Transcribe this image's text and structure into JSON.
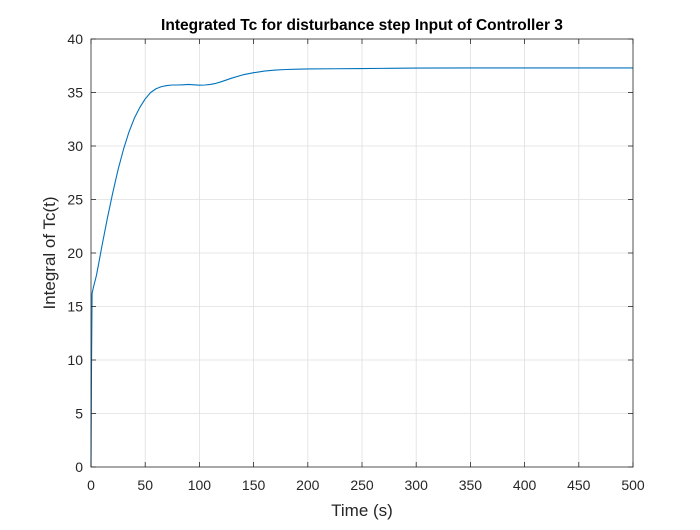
{
  "chart_data": {
    "type": "line",
    "title": "Integrated Tc for disturbance step Input of Controller 3",
    "xlabel": "Time (s)",
    "ylabel": "Integral of Tc(t)",
    "xlim": [
      0,
      500
    ],
    "ylim": [
      0,
      40
    ],
    "xticks": [
      0,
      50,
      100,
      150,
      200,
      250,
      300,
      350,
      400,
      450,
      500
    ],
    "yticks": [
      0,
      5,
      10,
      15,
      20,
      25,
      30,
      35,
      40
    ],
    "grid": true,
    "box": true,
    "line_color": "#0072BD",
    "series": [
      {
        "x": [
          0,
          0.5,
          1,
          2,
          3,
          5,
          8,
          10,
          15,
          20,
          25,
          30,
          35,
          40,
          45,
          50,
          55,
          60,
          65,
          70,
          75,
          80,
          85,
          90,
          95,
          100,
          105,
          110,
          115,
          120,
          130,
          140,
          150,
          160,
          170,
          180,
          190,
          200,
          225,
          250,
          275,
          300,
          350,
          400,
          450,
          500
        ],
        "y": [
          0,
          10,
          16.2,
          16.7,
          17.1,
          17.9,
          19.5,
          20.6,
          23.2,
          25.6,
          27.8,
          29.7,
          31.3,
          32.6,
          33.6,
          34.4,
          35.0,
          35.35,
          35.55,
          35.65,
          35.7,
          35.7,
          35.72,
          35.75,
          35.72,
          35.68,
          35.7,
          35.75,
          35.85,
          36.0,
          36.35,
          36.65,
          36.85,
          37.0,
          37.1,
          37.15,
          37.18,
          37.2,
          37.22,
          37.24,
          37.26,
          37.28,
          37.3,
          37.3,
          37.3,
          37.3
        ]
      }
    ]
  }
}
